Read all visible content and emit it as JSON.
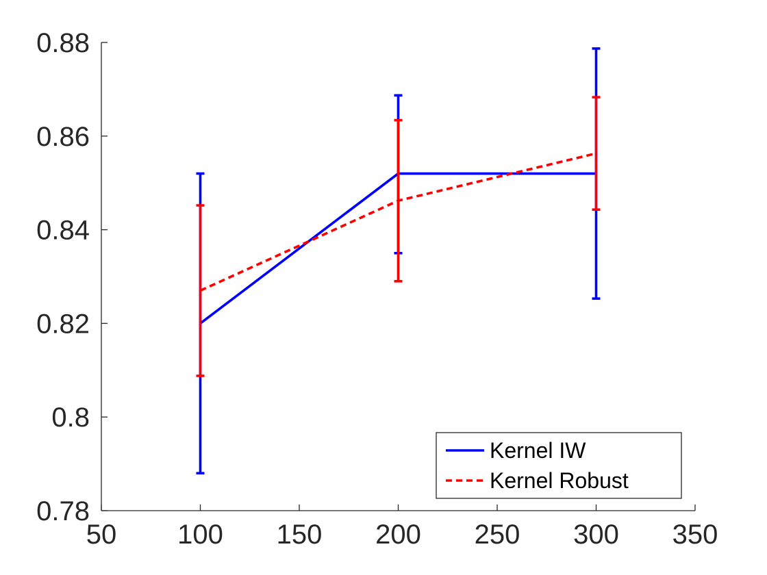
{
  "chart_data": {
    "type": "line",
    "title": "",
    "xlabel": "",
    "ylabel": "",
    "xlim": [
      50,
      350
    ],
    "ylim": [
      0.78,
      0.88
    ],
    "xticks": [
      50,
      100,
      150,
      200,
      250,
      300,
      350
    ],
    "xtick_labels": [
      "50",
      "100",
      "150",
      "200",
      "250",
      "300",
      "350"
    ],
    "yticks": [
      0.78,
      0.8,
      0.82,
      0.84,
      0.86,
      0.88
    ],
    "ytick_labels": [
      "0.78",
      "0.8",
      "0.82",
      "0.84",
      "0.86",
      "0.88"
    ],
    "grid": false,
    "legend_position": "bottom-right",
    "x": [
      100,
      200,
      300
    ],
    "series": [
      {
        "name": "Kernel IW",
        "color": "#0000ff",
        "line_style": "solid",
        "values": [
          0.82,
          0.852,
          0.852
        ],
        "error_low": [
          0.788,
          0.835,
          0.8253
        ],
        "error_high": [
          0.852,
          0.8687,
          0.8787
        ]
      },
      {
        "name": "Kernel Robust",
        "color": "#ff0000",
        "line_style": "dashed",
        "values": [
          0.827,
          0.8462,
          0.8563
        ],
        "error_low": [
          0.8088,
          0.829,
          0.8443
        ],
        "error_high": [
          0.8452,
          0.8634,
          0.8683
        ]
      }
    ]
  }
}
